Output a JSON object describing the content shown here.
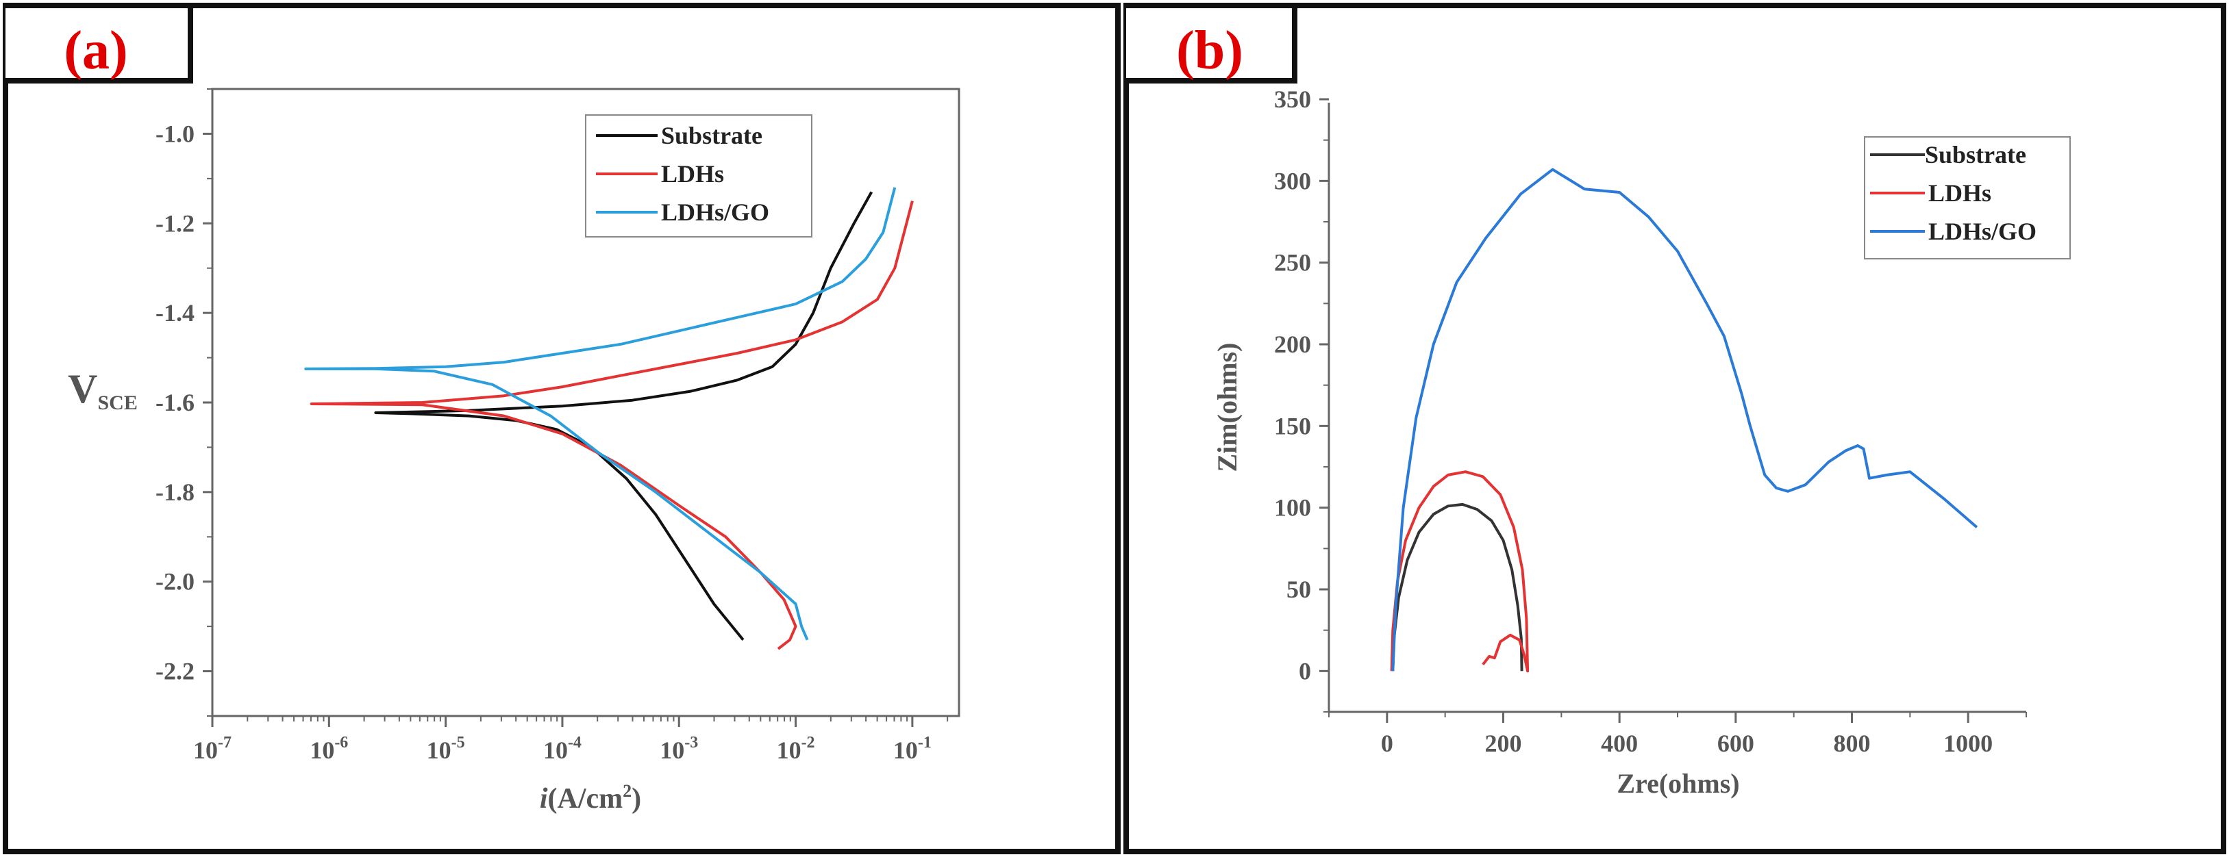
{
  "chart_data": [
    {
      "type": "line",
      "panel_label": "(a)",
      "panel_label_paren_open": "(",
      "panel_label_letter": "a",
      "panel_label_paren_close": ")",
      "xscale": "log",
      "xlabel_italic": "i",
      "xlabel_rest": "(A/cm",
      "xlabel_sup": "2",
      "xlabel_close": ")",
      "ylabel_main": "V",
      "ylabel_sub": "SCE",
      "xlim_exp": [
        -7,
        -0.6
      ],
      "ylim": [
        -2.3,
        -0.9
      ],
      "x_ticks_exp": [
        -7,
        -6,
        -5,
        -4,
        -3,
        -2,
        -1
      ],
      "y_ticks": [
        -1.0,
        -1.2,
        -1.4,
        -1.6,
        -1.8,
        -2.0,
        -2.2
      ],
      "y_tick_labels": [
        "-1.0",
        "-1.2",
        "-1.4",
        "-1.6",
        "-1.8",
        "-2.0",
        "-2.2"
      ],
      "legend": [
        "Substrate",
        "LDHs",
        "LDHs/GO"
      ],
      "series": [
        {
          "name": "Substrate",
          "color": "#111111",
          "points": [
            [
              -2.45,
              -2.13
            ],
            [
              -2.7,
              -2.05
            ],
            [
              -2.95,
              -1.95
            ],
            [
              -3.2,
              -1.85
            ],
            [
              -3.45,
              -1.77
            ],
            [
              -3.75,
              -1.7
            ],
            [
              -4.05,
              -1.66
            ],
            [
              -4.4,
              -1.64
            ],
            [
              -4.8,
              -1.63
            ],
            [
              -5.3,
              -1.625
            ],
            [
              -5.6,
              -1.623
            ],
            [
              -4.8,
              -1.618
            ],
            [
              -4.0,
              -1.608
            ],
            [
              -3.4,
              -1.595
            ],
            [
              -2.9,
              -1.575
            ],
            [
              -2.5,
              -1.55
            ],
            [
              -2.2,
              -1.52
            ],
            [
              -2.0,
              -1.47
            ],
            [
              -1.85,
              -1.4
            ],
            [
              -1.7,
              -1.3
            ],
            [
              -1.5,
              -1.2
            ],
            [
              -1.35,
              -1.13
            ]
          ]
        },
        {
          "name": "LDHs",
          "color": "#e33333",
          "points": [
            [
              -2.15,
              -2.15
            ],
            [
              -2.05,
              -2.13
            ],
            [
              -2.0,
              -2.1
            ],
            [
              -2.1,
              -2.04
            ],
            [
              -2.3,
              -1.98
            ],
            [
              -2.6,
              -1.9
            ],
            [
              -3.0,
              -1.83
            ],
            [
              -3.5,
              -1.74
            ],
            [
              -4.0,
              -1.67
            ],
            [
              -4.5,
              -1.63
            ],
            [
              -5.2,
              -1.605
            ],
            [
              -6.15,
              -1.603
            ],
            [
              -5.2,
              -1.6
            ],
            [
              -4.5,
              -1.585
            ],
            [
              -4.0,
              -1.565
            ],
            [
              -3.5,
              -1.54
            ],
            [
              -3.0,
              -1.515
            ],
            [
              -2.5,
              -1.49
            ],
            [
              -2.0,
              -1.46
            ],
            [
              -1.6,
              -1.42
            ],
            [
              -1.3,
              -1.37
            ],
            [
              -1.15,
              -1.3
            ],
            [
              -1.05,
              -1.2
            ],
            [
              -1.0,
              -1.15
            ]
          ]
        },
        {
          "name": "LDHs/GO",
          "color": "#2b9fdc",
          "points": [
            [
              -1.9,
              -2.13
            ],
            [
              -1.95,
              -2.1
            ],
            [
              -2.0,
              -2.05
            ],
            [
              -2.3,
              -1.98
            ],
            [
              -2.7,
              -1.9
            ],
            [
              -3.2,
              -1.8
            ],
            [
              -3.7,
              -1.71
            ],
            [
              -4.1,
              -1.63
            ],
            [
              -4.6,
              -1.56
            ],
            [
              -5.1,
              -1.53
            ],
            [
              -5.6,
              -1.525
            ],
            [
              -6.2,
              -1.525
            ],
            [
              -5.6,
              -1.524
            ],
            [
              -5.0,
              -1.52
            ],
            [
              -4.5,
              -1.51
            ],
            [
              -4.0,
              -1.49
            ],
            [
              -3.5,
              -1.47
            ],
            [
              -3.0,
              -1.44
            ],
            [
              -2.5,
              -1.41
            ],
            [
              -2.0,
              -1.38
            ],
            [
              -1.6,
              -1.33
            ],
            [
              -1.4,
              -1.28
            ],
            [
              -1.25,
              -1.22
            ],
            [
              -1.15,
              -1.12
            ]
          ]
        }
      ]
    },
    {
      "type": "line",
      "panel_label": "(b)",
      "panel_label_paren_open": "(",
      "panel_label_letter": "b",
      "panel_label_paren_close": ")",
      "xlabel": "Zre(ohms)",
      "ylabel": "Zim(ohms)",
      "xlim": [
        -100,
        1100
      ],
      "ylim": [
        -25,
        350
      ],
      "x_ticks": [
        0,
        200,
        400,
        600,
        800,
        1000
      ],
      "x_tick_labels": [
        "0",
        "200",
        "400",
        "600",
        "800",
        "1000"
      ],
      "y_ticks": [
        0,
        50,
        100,
        150,
        200,
        250,
        300,
        350
      ],
      "y_tick_labels": [
        "0",
        "50",
        "100",
        "150",
        "200",
        "250",
        "300",
        "350"
      ],
      "legend": [
        "Substrate",
        "LDHs",
        "LDHs/GO"
      ],
      "series": [
        {
          "name": "Substrate",
          "color": "#333333",
          "points": [
            [
              10,
              0
            ],
            [
              12,
              20
            ],
            [
              20,
              45
            ],
            [
              35,
              68
            ],
            [
              55,
              85
            ],
            [
              80,
              96
            ],
            [
              105,
              101
            ],
            [
              130,
              102
            ],
            [
              155,
              99
            ],
            [
              180,
              92
            ],
            [
              200,
              80
            ],
            [
              215,
              62
            ],
            [
              225,
              40
            ],
            [
              231,
              20
            ],
            [
              232,
              0
            ]
          ]
        },
        {
          "name": "LDHs",
          "color": "#e33333",
          "points": [
            [
              8,
              0
            ],
            [
              10,
              25
            ],
            [
              18,
              55
            ],
            [
              32,
              80
            ],
            [
              55,
              100
            ],
            [
              80,
              113
            ],
            [
              105,
              120
            ],
            [
              135,
              122
            ],
            [
              165,
              119
            ],
            [
              195,
              108
            ],
            [
              218,
              88
            ],
            [
              233,
              62
            ],
            [
              240,
              32
            ],
            [
              242,
              0
            ],
            [
              236,
              10
            ],
            [
              228,
              19
            ],
            [
              212,
              22
            ],
            [
              195,
              18
            ],
            [
              185,
              8
            ],
            [
              176,
              9
            ],
            [
              165,
              4
            ]
          ]
        },
        {
          "name": "LDHs/GO",
          "color": "#2b7ad8",
          "points": [
            [
              10,
              0
            ],
            [
              15,
              40
            ],
            [
              28,
              100
            ],
            [
              50,
              155
            ],
            [
              80,
              200
            ],
            [
              120,
              238
            ],
            [
              170,
              265
            ],
            [
              230,
              292
            ],
            [
              285,
              307
            ],
            [
              340,
              295
            ],
            [
              400,
              293
            ],
            [
              450,
              278
            ],
            [
              500,
              257
            ],
            [
              550,
              225
            ],
            [
              580,
              205
            ],
            [
              610,
              170
            ],
            [
              625,
              150
            ],
            [
              650,
              120
            ],
            [
              670,
              112
            ],
            [
              690,
              110
            ],
            [
              720,
              114
            ],
            [
              760,
              128
            ],
            [
              790,
              135
            ],
            [
              810,
              138
            ],
            [
              820,
              136
            ],
            [
              830,
              118
            ],
            [
              860,
              120
            ],
            [
              900,
              122
            ],
            [
              960,
              105
            ],
            [
              1015,
              88
            ]
          ]
        }
      ]
    }
  ]
}
